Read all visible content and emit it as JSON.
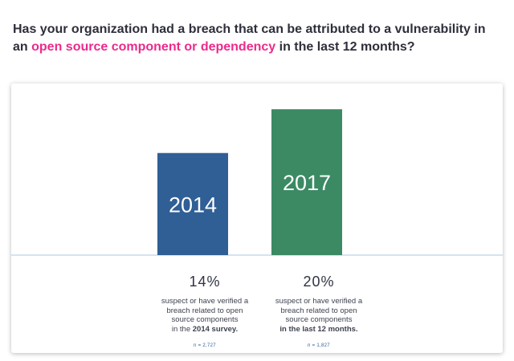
{
  "question": {
    "part1": "Has your organization had a breach that can be attributed to a vulnerability in an ",
    "highlight": "open source component or dependency",
    "part2": " in the last 12 months?"
  },
  "colors": {
    "highlight": "#ec2a8c",
    "bar_2014": "#2f5f95",
    "bar_2017": "#3b8a64",
    "baseline": "#bcd3ea"
  },
  "chart_data": {
    "type": "bar",
    "categories": [
      "2014",
      "2017"
    ],
    "values": [
      14,
      20
    ],
    "value_unit": "%",
    "ylim": [
      0,
      22
    ],
    "grid": false,
    "legend": "none",
    "bar_labels": [
      "2014",
      "2017"
    ],
    "stats": [
      {
        "percent": "14%",
        "desc_lines": [
          "suspect or have verified a",
          "breach related to open",
          "source components"
        ],
        "desc_last_prefix": "in the ",
        "desc_last_bold": "2014 survey.",
        "n": "n = 2,727"
      },
      {
        "percent": "20%",
        "desc_lines": [
          "suspect or have verified a",
          "breach related to open",
          "source components"
        ],
        "desc_last_prefix": "",
        "desc_last_bold": "in the last 12 months.",
        "n": "n = 1,827"
      }
    ]
  }
}
